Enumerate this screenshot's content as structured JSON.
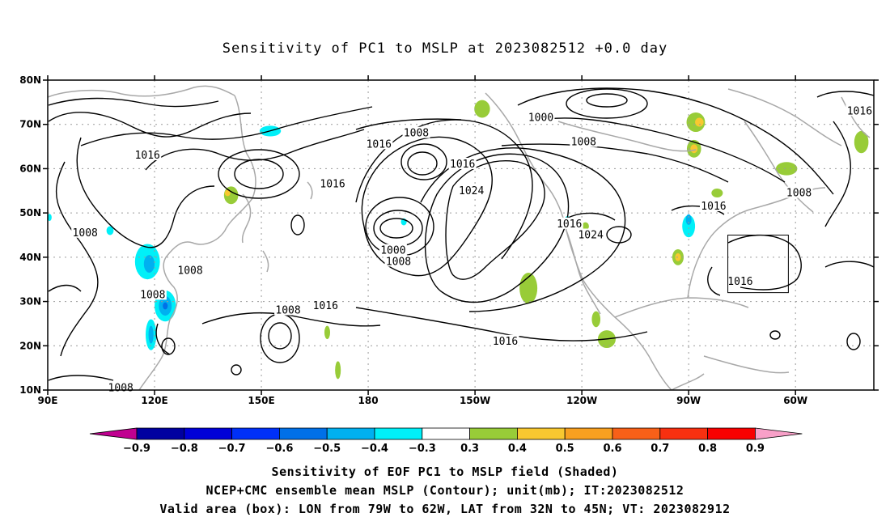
{
  "title": "Sensitivity of PC1 to MSLP at 2023082512 +0.0 day",
  "captions": {
    "line1": "Sensitivity of EOF PC1 to MSLP field (Shaded)",
    "line2": "NCEP+CMC ensemble mean MSLP (Contour); unit(mb); IT:2023082512",
    "line3": "Valid area (box): LON from 79W to 62W, LAT from 32N to 45N; VT: 2023082912"
  },
  "lat_labels": [
    "80N",
    "70N",
    "60N",
    "50N",
    "40N",
    "30N",
    "20N",
    "10N"
  ],
  "lon_labels": [
    "90E",
    "120E",
    "150E",
    "180",
    "150W",
    "120W",
    "90W",
    "60W"
  ],
  "lat_values": [
    80,
    70,
    60,
    50,
    40,
    30,
    20,
    10
  ],
  "lon_values": [
    90,
    120,
    150,
    180,
    210,
    240,
    270,
    300
  ],
  "extent": {
    "lon_min": 90,
    "lon_max": 322,
    "lat_min": 10,
    "lat_max": 80
  },
  "valid_box": {
    "lon_min": 281,
    "lon_max": 298,
    "lat_min": 32,
    "lat_max": 45
  },
  "colorbar": {
    "labels": [
      "-0.9",
      "-0.8",
      "-0.7",
      "-0.6",
      "-0.5",
      "-0.4",
      "-0.3",
      "0.3",
      "0.4",
      "0.5",
      "0.6",
      "0.7",
      "0.8",
      "0.9"
    ],
    "colors": [
      "#0000a0",
      "#0000d8",
      "#0030f8",
      "#0070e8",
      "#00b0f0",
      "#00f0f8",
      "#ffffff",
      "#98cc38",
      "#f8c830",
      "#f8a020",
      "#f86018",
      "#f83010",
      "#f80000"
    ],
    "low_end": "#c00090",
    "high_end": "#f8a0c8"
  },
  "contour_labels": [
    {
      "text": "1000",
      "lon": 228.5,
      "lat": 71.5
    },
    {
      "text": "1008",
      "lon": 240.5,
      "lat": 66.0
    },
    {
      "text": "1016",
      "lon": 318.0,
      "lat": 73.0
    },
    {
      "text": "1008",
      "lon": 193.5,
      "lat": 68.0
    },
    {
      "text": "1016",
      "lon": 183.0,
      "lat": 65.5
    },
    {
      "text": "1016",
      "lon": 118.0,
      "lat": 63.0
    },
    {
      "text": "1016",
      "lon": 206.5,
      "lat": 61.0
    },
    {
      "text": "1016",
      "lon": 170.0,
      "lat": 56.5
    },
    {
      "text": "1024",
      "lon": 209.0,
      "lat": 55.0
    },
    {
      "text": "1008",
      "lon": 301.0,
      "lat": 54.5
    },
    {
      "text": "1016",
      "lon": 277.0,
      "lat": 51.5
    },
    {
      "text": "1016",
      "lon": 236.5,
      "lat": 47.5
    },
    {
      "text": "1024",
      "lon": 242.5,
      "lat": 45.0
    },
    {
      "text": "1008",
      "lon": 100.5,
      "lat": 45.5
    },
    {
      "text": "1000",
      "lon": 187.0,
      "lat": 41.5
    },
    {
      "text": "1008",
      "lon": 188.5,
      "lat": 39.0
    },
    {
      "text": "1008",
      "lon": 130.0,
      "lat": 37.0
    },
    {
      "text": "1016",
      "lon": 284.5,
      "lat": 34.5
    },
    {
      "text": "1008",
      "lon": 119.5,
      "lat": 31.5
    },
    {
      "text": "1016",
      "lon": 168.0,
      "lat": 29.0
    },
    {
      "text": "1008",
      "lon": 157.5,
      "lat": 28.0
    },
    {
      "text": "1016",
      "lon": 218.5,
      "lat": 21.0
    },
    {
      "text": "1008",
      "lon": 110.5,
      "lat": 10.5
    }
  ],
  "shading": [
    {
      "color": "#98cc38",
      "lon": 212,
      "lat": 73.5,
      "rx": 2.2,
      "ry": 2.0
    },
    {
      "color": "#98cc38",
      "lon": 272,
      "lat": 70.5,
      "rx": 2.6,
      "ry": 2.2
    },
    {
      "color": "#f8c830",
      "lon": 273,
      "lat": 70.5,
      "rx": 1.2,
      "ry": 1.0
    },
    {
      "color": "#98cc38",
      "lon": 271.5,
      "lat": 64.5,
      "rx": 2.0,
      "ry": 2.0
    },
    {
      "color": "#f8c830",
      "lon": 271.5,
      "lat": 64.5,
      "rx": 1.0,
      "ry": 1.0
    },
    {
      "color": "#98cc38",
      "lon": 297.5,
      "lat": 60.0,
      "rx": 3.0,
      "ry": 1.5
    },
    {
      "color": "#98cc38",
      "lon": 318.5,
      "lat": 66.0,
      "rx": 2.0,
      "ry": 2.5
    },
    {
      "color": "#98cc38",
      "lon": 141.5,
      "lat": 54.0,
      "rx": 2.0,
      "ry": 2.0
    },
    {
      "color": "#f8c830",
      "lon": 140.5,
      "lat": 54.5,
      "rx": 0.8,
      "ry": 0.7
    },
    {
      "color": "#98cc38",
      "lon": 278.0,
      "lat": 54.5,
      "rx": 1.6,
      "ry": 1.0
    },
    {
      "color": "#98cc38",
      "lon": 267.0,
      "lat": 40.0,
      "rx": 1.6,
      "ry": 1.8
    },
    {
      "color": "#f8c830",
      "lon": 267.0,
      "lat": 40.0,
      "rx": 0.8,
      "ry": 0.9
    },
    {
      "color": "#98cc38",
      "lon": 241.0,
      "lat": 47.0,
      "rx": 1.0,
      "ry": 0.9
    },
    {
      "color": "#98cc38",
      "lon": 225.0,
      "lat": 33.0,
      "rx": 2.5,
      "ry": 3.5
    },
    {
      "color": "#98cc38",
      "lon": 247.0,
      "lat": 21.5,
      "rx": 2.5,
      "ry": 2.0
    },
    {
      "color": "#98cc38",
      "lon": 244.0,
      "lat": 26.0,
      "rx": 1.2,
      "ry": 1.8
    },
    {
      "color": "#98cc38",
      "lon": 168.5,
      "lat": 23.0,
      "rx": 0.8,
      "ry": 1.5
    },
    {
      "color": "#98cc38",
      "lon": 171.5,
      "lat": 14.5,
      "rx": 0.8,
      "ry": 2.0
    },
    {
      "color": "#00f0f8",
      "lon": 152.5,
      "lat": 68.5,
      "rx": 3.0,
      "ry": 1.2
    },
    {
      "color": "#00f0f8",
      "lon": 270.0,
      "lat": 47.0,
      "rx": 1.8,
      "ry": 2.5
    },
    {
      "color": "#00b0f0",
      "lon": 270.0,
      "lat": 48.5,
      "rx": 0.8,
      "ry": 1.2
    },
    {
      "color": "#00f0f8",
      "lon": 236.0,
      "lat": 48.5,
      "rx": 0.8,
      "ry": 0.8
    },
    {
      "color": "#00f0f8",
      "lon": 190.0,
      "lat": 48.0,
      "rx": 0.8,
      "ry": 0.8
    },
    {
      "color": "#00f0f8",
      "lon": 118.0,
      "lat": 39.0,
      "rx": 3.5,
      "ry": 4.0
    },
    {
      "color": "#00b0f0",
      "lon": 118.5,
      "lat": 38.5,
      "rx": 1.5,
      "ry": 2.0
    },
    {
      "color": "#00f0f8",
      "lon": 123.0,
      "lat": 29.0,
      "rx": 3.0,
      "ry": 3.5
    },
    {
      "color": "#00b0f0",
      "lon": 123.0,
      "lat": 29.0,
      "rx": 1.8,
      "ry": 2.2
    },
    {
      "color": "#0070e8",
      "lon": 123.0,
      "lat": 29.0,
      "rx": 0.7,
      "ry": 0.8
    },
    {
      "color": "#00f0f8",
      "lon": 119.0,
      "lat": 22.5,
      "rx": 1.5,
      "ry": 3.5
    },
    {
      "color": "#00b0f0",
      "lon": 119.0,
      "lat": 22.5,
      "rx": 0.7,
      "ry": 2.0
    },
    {
      "color": "#00f0f8",
      "lon": 107.5,
      "lat": 46.0,
      "rx": 1.0,
      "ry": 1.0
    },
    {
      "color": "#00f0f8",
      "lon": 90.5,
      "lat": 49.0,
      "rx": 0.6,
      "ry": 0.8
    }
  ]
}
